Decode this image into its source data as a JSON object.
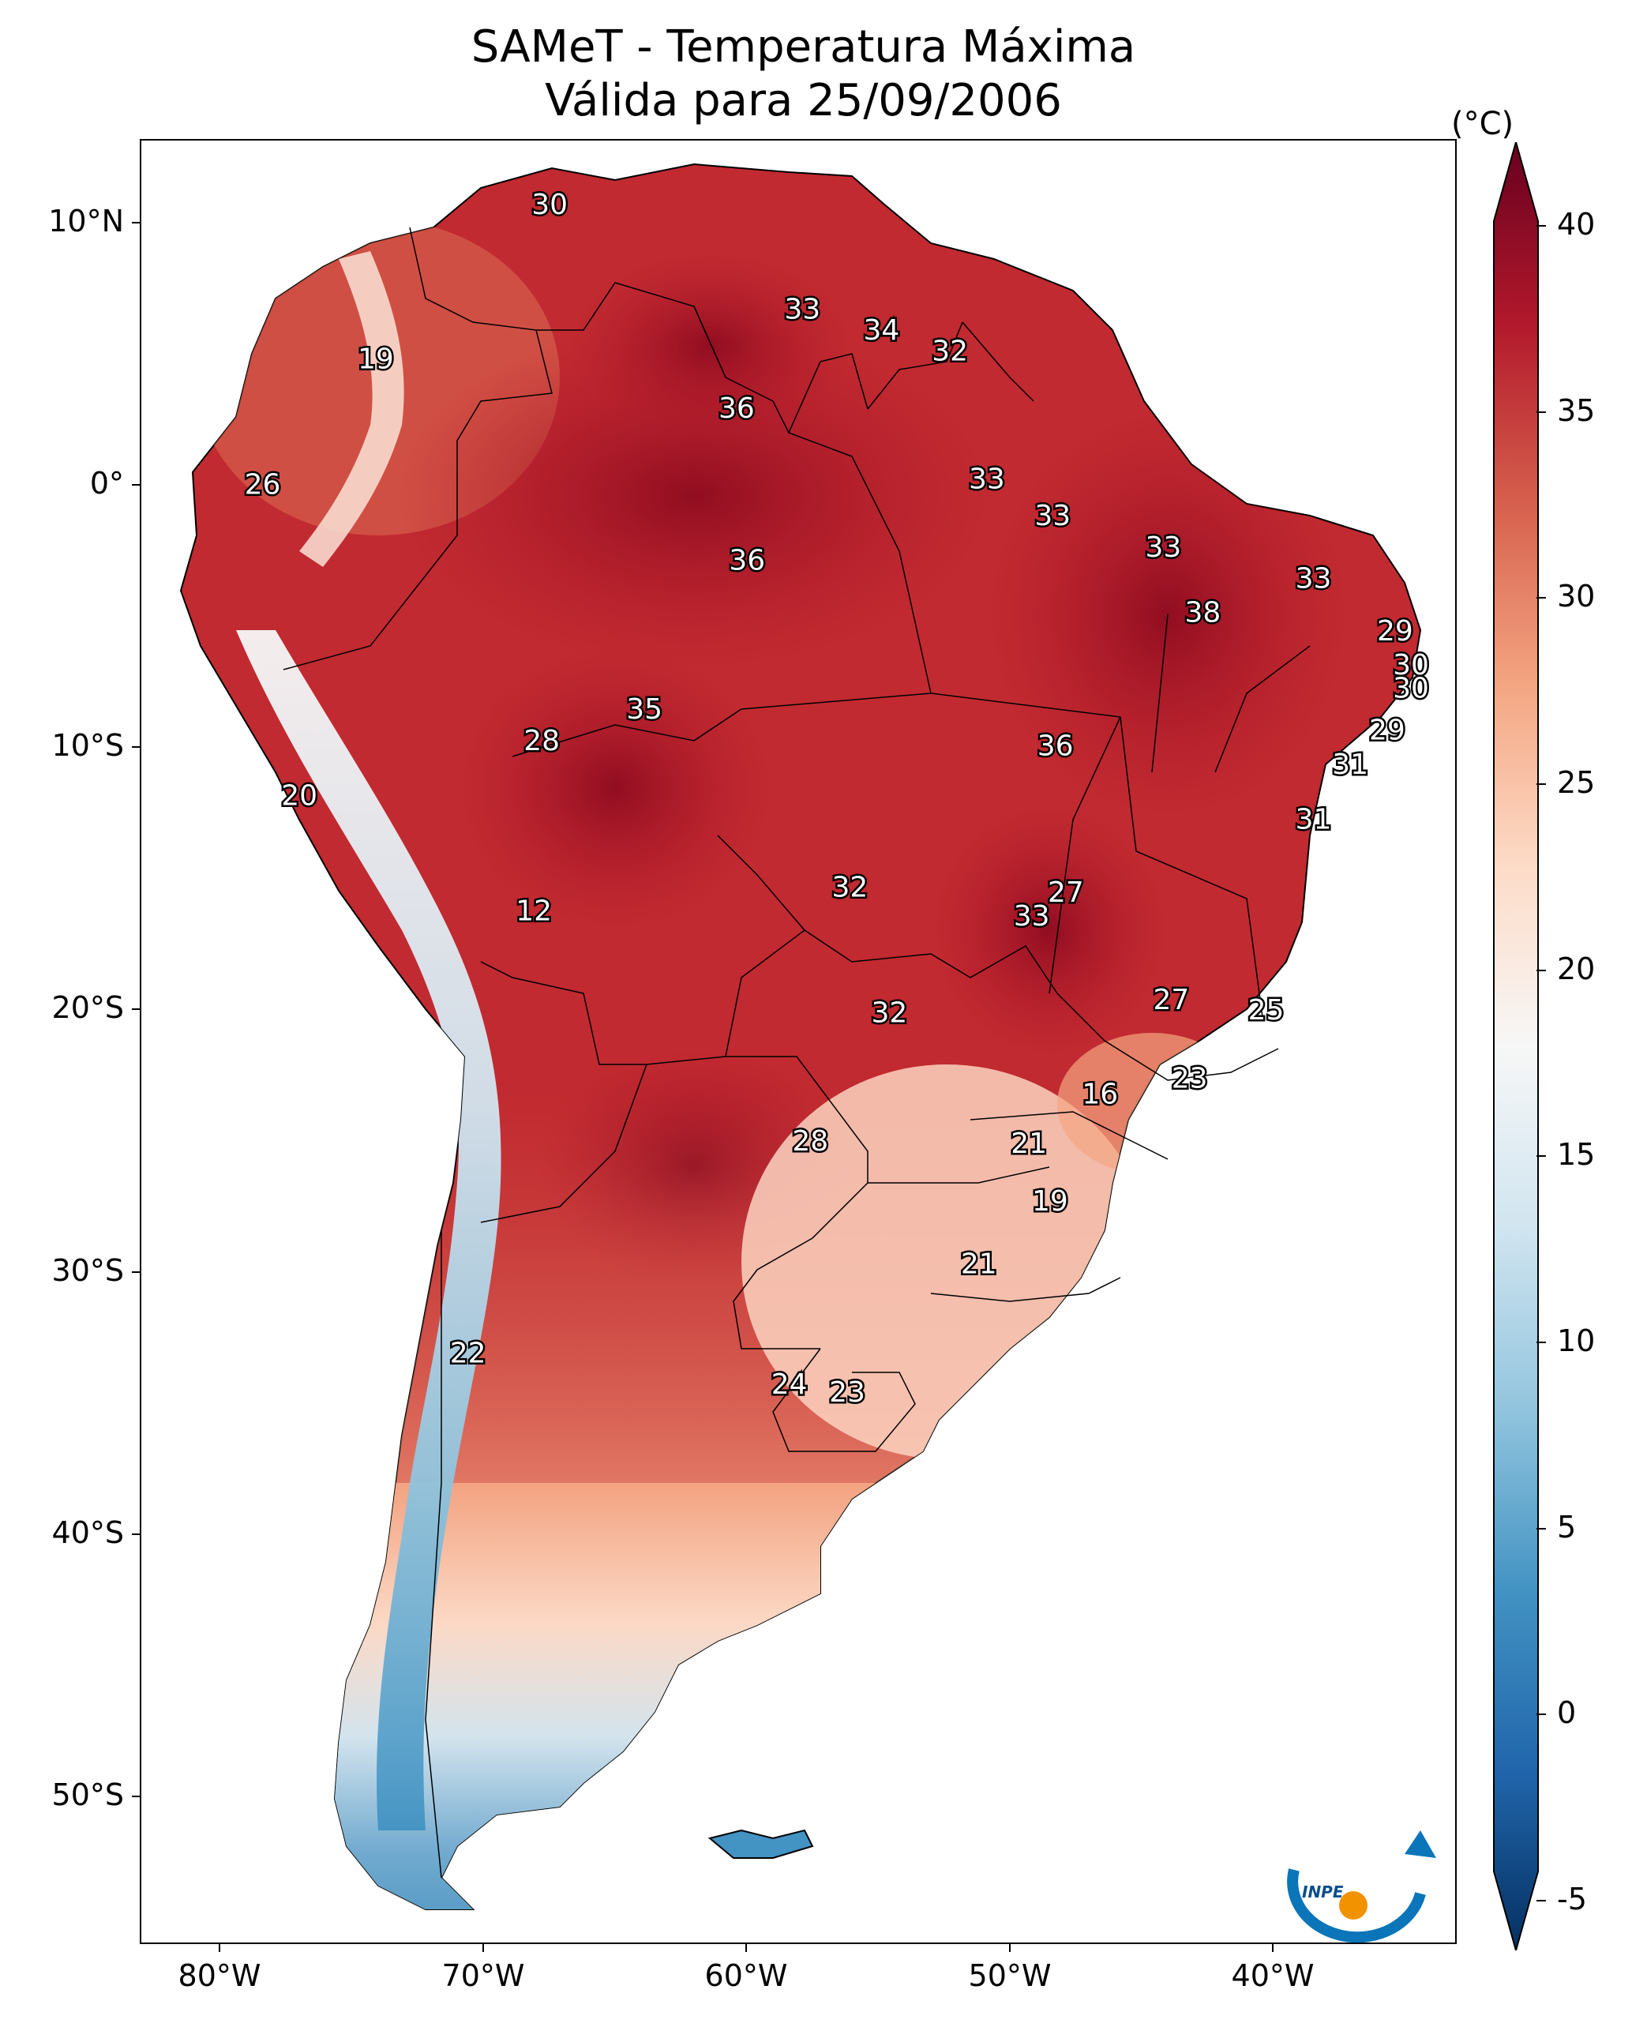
{
  "title": {
    "line1": "SAMeT - Temperatura Máxima",
    "line2": "Válida para 25/09/2006"
  },
  "map": {
    "lon_range": [
      -83,
      -33
    ],
    "lat_range": [
      -56,
      13
    ],
    "lat_ticks": [
      {
        "value": 10,
        "label": "10°N"
      },
      {
        "value": 0,
        "label": "0°"
      },
      {
        "value": -10,
        "label": "10°S"
      },
      {
        "value": -20,
        "label": "20°S"
      },
      {
        "value": -30,
        "label": "30°S"
      },
      {
        "value": -40,
        "label": "40°S"
      },
      {
        "value": -50,
        "label": "50°S"
      }
    ],
    "lon_ticks": [
      {
        "value": -80,
        "label": "80°W"
      },
      {
        "value": -70,
        "label": "70°W"
      },
      {
        "value": -60,
        "label": "60°W"
      },
      {
        "value": -50,
        "label": "50°W"
      },
      {
        "value": -40,
        "label": "40°W"
      }
    ],
    "logo_text": "INPE"
  },
  "colorbar": {
    "unit": "(°C)",
    "min": -5,
    "max": 40,
    "ticks": [
      "40",
      "35",
      "30",
      "25",
      "20",
      "15",
      "10",
      "5",
      "0",
      "-5"
    ],
    "colors": [
      "#053061",
      "#2166ac",
      "#4393c3",
      "#92c5de",
      "#d1e5f0",
      "#f7f7f7",
      "#fddbc7",
      "#f4a582",
      "#d6604d",
      "#b2182b",
      "#67001f"
    ]
  },
  "station_labels": [
    {
      "text": "30",
      "lon": -67.5,
      "lat": 10.5
    },
    {
      "text": "33",
      "lon": -57.9,
      "lat": 6.5
    },
    {
      "text": "34",
      "lon": -54.9,
      "lat": 5.7
    },
    {
      "text": "32",
      "lon": -52.3,
      "lat": 4.9
    },
    {
      "text": "36",
      "lon": -60.4,
      "lat": 2.7
    },
    {
      "text": "19",
      "lon": -74.1,
      "lat": 4.6
    },
    {
      "text": "26",
      "lon": -78.4,
      "lat": -0.2
    },
    {
      "text": "33",
      "lon": -50.9,
      "lat": 0.0
    },
    {
      "text": "33",
      "lon": -48.4,
      "lat": -1.4
    },
    {
      "text": "33",
      "lon": -44.2,
      "lat": -2.6
    },
    {
      "text": "36",
      "lon": -60.0,
      "lat": -3.1
    },
    {
      "text": "33",
      "lon": -38.5,
      "lat": -3.8
    },
    {
      "text": "38",
      "lon": -42.7,
      "lat": -5.1
    },
    {
      "text": "29",
      "lon": -35.4,
      "lat": -5.8
    },
    {
      "text": "30",
      "lon": -34.8,
      "lat": -7.1
    },
    {
      "text": "30",
      "lon": -34.8,
      "lat": -8.0
    },
    {
      "text": "35",
      "lon": -63.9,
      "lat": -8.8
    },
    {
      "text": "29",
      "lon": -35.7,
      "lat": -9.6
    },
    {
      "text": "28",
      "lon": -67.8,
      "lat": -10.0
    },
    {
      "text": "36",
      "lon": -48.3,
      "lat": -10.2
    },
    {
      "text": "31",
      "lon": -37.1,
      "lat": -10.9
    },
    {
      "text": "20",
      "lon": -77.0,
      "lat": -12.1
    },
    {
      "text": "31",
      "lon": -38.5,
      "lat": -13.0
    },
    {
      "text": "32",
      "lon": -56.1,
      "lat": -15.6
    },
    {
      "text": "27",
      "lon": -47.9,
      "lat": -15.8
    },
    {
      "text": "33",
      "lon": -49.2,
      "lat": -16.7
    },
    {
      "text": "12",
      "lon": -68.1,
      "lat": -16.5
    },
    {
      "text": "27",
      "lon": -43.9,
      "lat": -19.9
    },
    {
      "text": "25",
      "lon": -40.3,
      "lat": -20.3
    },
    {
      "text": "32",
      "lon": -54.6,
      "lat": -20.4
    },
    {
      "text": "23",
      "lon": -43.2,
      "lat": -22.9
    },
    {
      "text": "16",
      "lon": -46.6,
      "lat": -23.5
    },
    {
      "text": "28",
      "lon": -57.6,
      "lat": -25.3
    },
    {
      "text": "21",
      "lon": -49.3,
      "lat": -25.4
    },
    {
      "text": "19",
      "lon": -48.5,
      "lat": -27.6
    },
    {
      "text": "21",
      "lon": -51.2,
      "lat": -30.0
    },
    {
      "text": "22",
      "lon": -70.6,
      "lat": -33.4
    },
    {
      "text": "24",
      "lon": -58.4,
      "lat": -34.6
    },
    {
      "text": "23",
      "lon": -56.2,
      "lat": -34.9
    }
  ]
}
